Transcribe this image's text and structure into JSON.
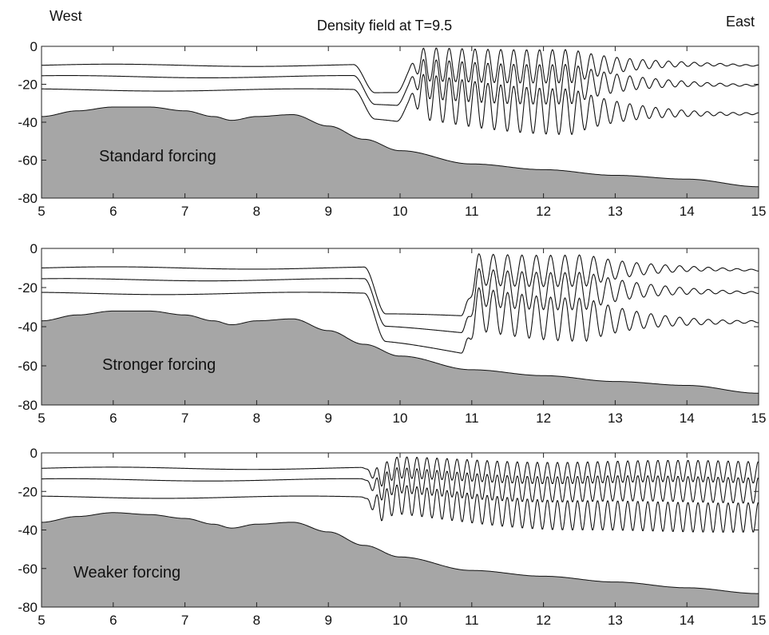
{
  "header": {
    "left_label": "West",
    "title": "Density field at T=9.5",
    "right_label": "East"
  },
  "colors": {
    "bathymetry_fill": "#a6a6a6",
    "line": "#111111",
    "frame": "#222222"
  },
  "chart_data": [
    {
      "type": "line",
      "label": "Standard forcing",
      "xlim": [
        5,
        15
      ],
      "ylim": [
        -80,
        0
      ],
      "xticks": [
        5,
        6,
        7,
        8,
        9,
        10,
        11,
        12,
        13,
        14,
        15
      ],
      "yticks": [
        0,
        -20,
        -40,
        -60,
        -80
      ],
      "ytick_labels": [
        "0",
        "-20",
        "-40",
        "-60",
        "-80"
      ],
      "bathymetry": {
        "x": [
          5,
          5.5,
          6,
          6.5,
          7,
          7.4,
          7.65,
          8,
          8.5,
          9,
          9.5,
          10,
          11,
          12,
          13,
          14,
          15
        ],
        "y": [
          -37,
          -34,
          -32,
          -32,
          -34,
          -37,
          -39,
          -37,
          -36,
          -42,
          -49,
          -55,
          -62,
          -65,
          -68,
          -70,
          -74
        ]
      },
      "isopycnals": {
        "base_depths_west": [
          -10,
          -16,
          -23
        ],
        "base_depths_east": [
          -10,
          -20,
          -35
        ],
        "front_position": 9.35,
        "front_depression": 15,
        "bore_end": 9.95,
        "wave_train": {
          "start": 10.1,
          "end": 12.4,
          "amplitude": 11,
          "wavelength": 0.18,
          "tail_decay": 0.8
        }
      }
    },
    {
      "type": "line",
      "label": "Stronger forcing",
      "xlim": [
        5,
        15
      ],
      "ylim": [
        -80,
        0
      ],
      "xticks": [
        5,
        6,
        7,
        8,
        9,
        10,
        11,
        12,
        13,
        14,
        15
      ],
      "yticks": [
        0,
        -20,
        -40,
        -60,
        -80
      ],
      "ytick_labels": [
        "0",
        "-20",
        "-40",
        "-60",
        "-80"
      ],
      "bathymetry": {
        "x": [
          5,
          5.5,
          6,
          6.5,
          7,
          7.4,
          7.65,
          8,
          8.5,
          9,
          9.5,
          10,
          11,
          12,
          13,
          14,
          15
        ],
        "y": [
          -37,
          -34,
          -32,
          -32,
          -34,
          -37,
          -39,
          -37,
          -36,
          -42,
          -49,
          -55,
          -62,
          -65,
          -68,
          -70,
          -74
        ]
      },
      "isopycnals": {
        "base_depths_west": [
          -10,
          -16,
          -23
        ],
        "base_depths_east": [
          -11,
          -22,
          -37
        ],
        "front_position": 9.5,
        "front_depression": 24,
        "bore_end": 10.85,
        "wave_train": {
          "start": 10.85,
          "end": 12.6,
          "amplitude": 10,
          "wavelength": 0.2,
          "tail_decay": 0.8
        }
      }
    },
    {
      "type": "line",
      "label": "Weaker forcing",
      "xlim": [
        5,
        15
      ],
      "ylim": [
        -80,
        0
      ],
      "xticks": [
        5,
        6,
        7,
        8,
        9,
        10,
        11,
        12,
        13,
        14,
        15
      ],
      "yticks": [
        0,
        -20,
        -40,
        -60,
        -80
      ],
      "ytick_labels": [
        "0",
        "-20",
        "-40",
        "-60",
        "-80"
      ],
      "bathymetry": {
        "x": [
          5,
          5.5,
          6,
          6.5,
          7,
          7.4,
          7.65,
          8,
          8.5,
          9,
          9.5,
          10,
          11,
          12,
          13,
          14,
          15
        ],
        "y": [
          -36,
          -33,
          -31,
          -32,
          -34,
          -37,
          -39,
          -37,
          -36,
          -41,
          -48,
          -54,
          -61,
          -64,
          -67,
          -70,
          -73
        ]
      },
      "isopycnals": {
        "base_depths_west": [
          -8,
          -14,
          -23
        ],
        "base_depths_east": [
          -10,
          -19,
          -33
        ],
        "front_position": 9.45,
        "front_depression": 6,
        "bore_end": 9.45,
        "wave_train": {
          "start": 9.5,
          "end": 15,
          "amplitude": 7,
          "wavelength": 0.14,
          "tail_decay": 0.35
        }
      }
    }
  ]
}
